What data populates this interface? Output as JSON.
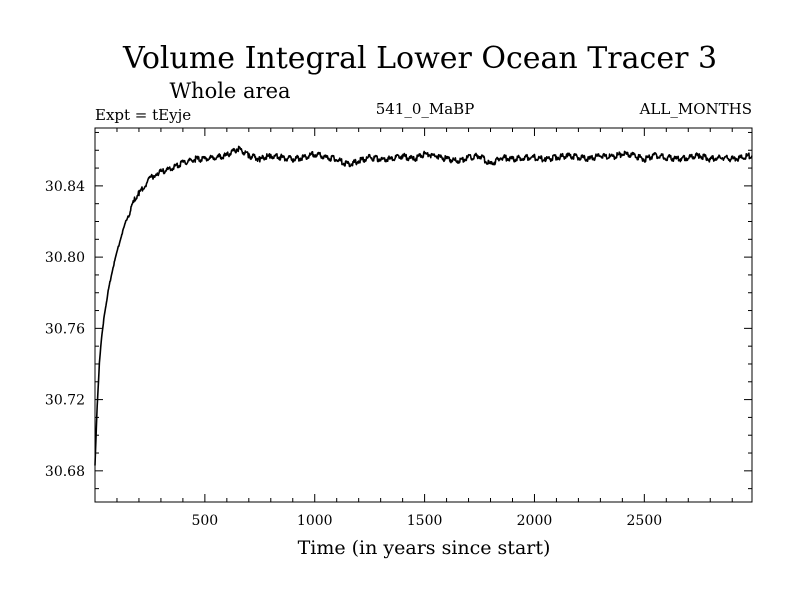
{
  "chart_data": {
    "type": "line",
    "title": "Volume Integral Lower Ocean Tracer 3",
    "subtitle": "Whole area",
    "experiment_label": "Expt = tEyje",
    "period_label": "541_0_MaBP",
    "months_label": "ALL_MONTHS",
    "xlabel": "Time (in years since start)",
    "ylabel": "",
    "xlim": [
      0,
      2990
    ],
    "ylim": [
      30.6625,
      30.8725
    ],
    "x_ticks": [
      500,
      1000,
      1500,
      2000,
      2500
    ],
    "x_tick_labels": [
      "500",
      "1000",
      "1500",
      "2000",
      "2500"
    ],
    "y_ticks": [
      30.68,
      30.72,
      30.76,
      30.8,
      30.84
    ],
    "y_tick_labels": [
      "30.68",
      "30.72",
      "30.76",
      "30.80",
      "30.84"
    ],
    "grid": false,
    "legend": "none",
    "series": [
      {
        "name": "Volume integral tracer 3",
        "x": [
          0,
          10,
          20,
          30,
          40,
          50,
          60,
          80,
          100,
          120,
          140,
          160,
          180,
          200,
          220,
          250,
          280,
          300,
          350,
          400,
          450,
          500,
          550,
          600,
          650,
          700,
          750,
          800,
          850,
          900,
          950,
          1000,
          1050,
          1100,
          1150,
          1200,
          1250,
          1300,
          1350,
          1400,
          1450,
          1500,
          1550,
          1600,
          1650,
          1700,
          1750,
          1800,
          1850,
          1900,
          1950,
          2000,
          2050,
          2100,
          2150,
          2200,
          2250,
          2300,
          2350,
          2400,
          2450,
          2500,
          2550,
          2600,
          2650,
          2700,
          2750,
          2800,
          2850,
          2900,
          2950,
          2990
        ],
        "values": [
          30.683,
          30.717,
          30.74,
          30.755,
          30.765,
          30.773,
          30.781,
          30.793,
          30.803,
          30.812,
          30.82,
          30.826,
          30.832,
          30.836,
          30.839,
          30.844,
          30.847,
          30.848,
          30.85,
          30.853,
          30.855,
          30.855,
          30.856,
          30.857,
          30.861,
          30.857,
          30.855,
          30.857,
          30.856,
          30.855,
          30.856,
          30.858,
          30.856,
          30.855,
          30.852,
          30.854,
          30.856,
          30.855,
          30.855,
          30.857,
          30.855,
          30.858,
          30.857,
          30.855,
          30.854,
          30.856,
          30.857,
          30.852,
          30.856,
          30.855,
          30.856,
          30.856,
          30.855,
          30.856,
          30.857,
          30.856,
          30.855,
          30.857,
          30.856,
          30.858,
          30.857,
          30.855,
          30.857,
          30.856,
          30.855,
          30.856,
          30.857,
          30.855,
          30.856,
          30.855,
          30.856,
          30.857
        ]
      }
    ]
  }
}
